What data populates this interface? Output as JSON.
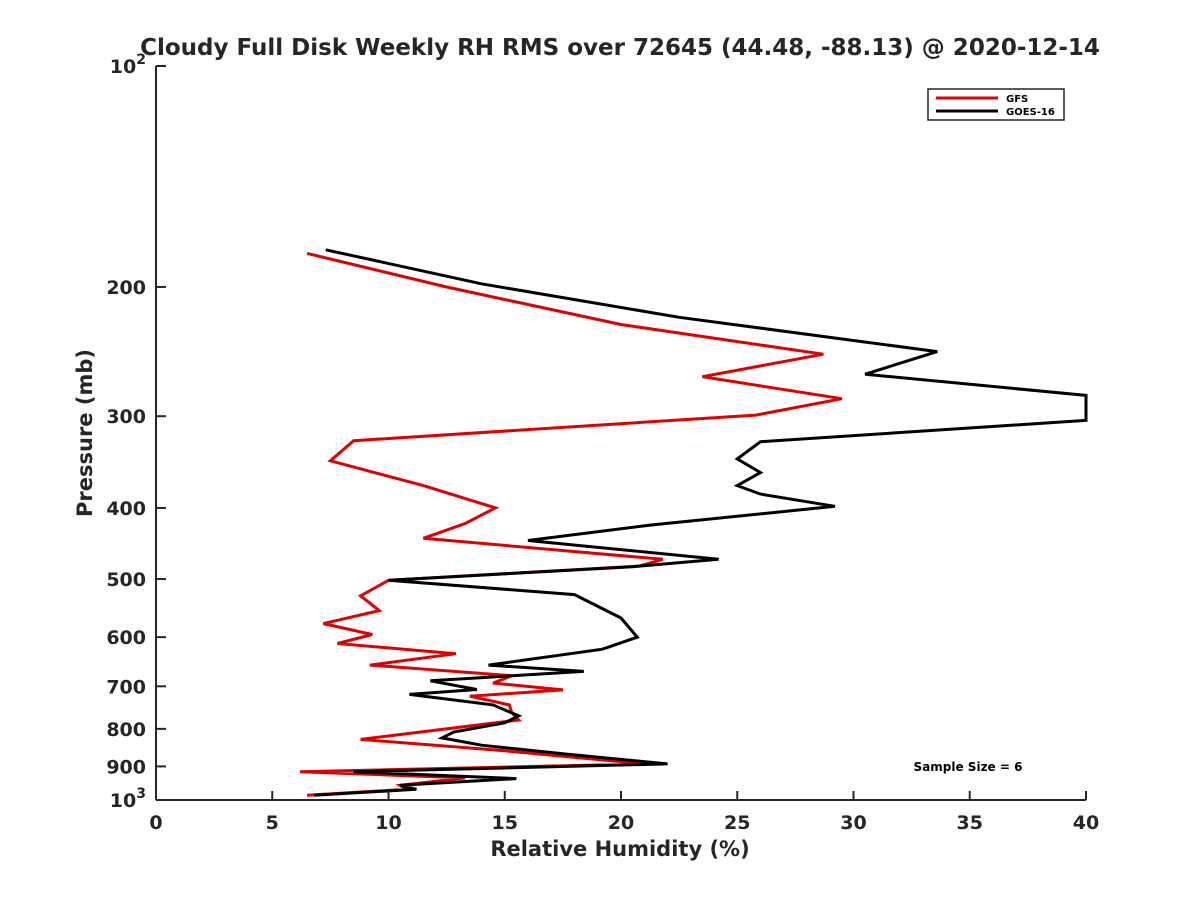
{
  "chart_data": {
    "type": "line",
    "title": "Cloudy Full Disk Weekly RH RMS over 72645 (44.48, -88.13) @ 2020-12-14",
    "xlabel": "Relative Humidity (%)",
    "ylabel": "Pressure (mb)",
    "xlim": [
      0,
      40
    ],
    "ylim": [
      1000,
      100
    ],
    "yscale": "log",
    "y_reversed": true,
    "grid": false,
    "legend_position": "top-right",
    "x_ticks": [
      "0",
      "5",
      "10",
      "15",
      "20",
      "25",
      "30",
      "35",
      "40"
    ],
    "y_ticks": [
      {
        "value": 100,
        "base": "10",
        "exp": "2"
      },
      {
        "value": 200,
        "label": "200"
      },
      {
        "value": 300,
        "label": "300"
      },
      {
        "value": 400,
        "label": "400"
      },
      {
        "value": 500,
        "label": "500"
      },
      {
        "value": 600,
        "label": "600"
      },
      {
        "value": 700,
        "label": "700"
      },
      {
        "value": 800,
        "label": "800"
      },
      {
        "value": 900,
        "label": "900"
      },
      {
        "value": 1000,
        "base": "10",
        "exp": "3"
      }
    ],
    "annotation": "Sample Size = 6",
    "series": [
      {
        "name": "GFS",
        "color": "#e00000",
        "points": [
          [
            6.5,
            180
          ],
          [
            12.5,
            200
          ],
          [
            20.0,
            225
          ],
          [
            28.7,
            247
          ],
          [
            23.5,
            265
          ],
          [
            29.5,
            284
          ],
          [
            25.8,
            299
          ],
          [
            8.5,
            324
          ],
          [
            7.5,
            345
          ],
          [
            11.5,
            373
          ],
          [
            14.6,
            400
          ],
          [
            13.3,
            420
          ],
          [
            11.5,
            440
          ],
          [
            21.8,
            470
          ],
          [
            20.8,
            480
          ],
          [
            10.0,
            502
          ],
          [
            8.8,
            527
          ],
          [
            9.6,
            552
          ],
          [
            7.2,
            575
          ],
          [
            9.3,
            595
          ],
          [
            7.8,
            612
          ],
          [
            12.9,
            632
          ],
          [
            9.2,
            655
          ],
          [
            15.3,
            677
          ],
          [
            14.5,
            693
          ],
          [
            17.5,
            708
          ],
          [
            13.5,
            722
          ],
          [
            15.2,
            742
          ],
          [
            15.3,
            760
          ],
          [
            15.6,
            778
          ],
          [
            8.8,
            827
          ],
          [
            15.0,
            857
          ],
          [
            21.0,
            893
          ],
          [
            6.2,
            915
          ],
          [
            13.3,
            933
          ],
          [
            10.5,
            955
          ],
          [
            10.8,
            967
          ],
          [
            6.5,
            985
          ]
        ]
      },
      {
        "name": "GOES-16",
        "color": "#000000",
        "points": [
          [
            7.3,
            178
          ],
          [
            14.0,
            198
          ],
          [
            22.5,
            220
          ],
          [
            33.6,
            245
          ],
          [
            30.5,
            263
          ],
          [
            40.0,
            281
          ],
          [
            40.0,
            304
          ],
          [
            26.0,
            325
          ],
          [
            25.0,
            343
          ],
          [
            26.0,
            358
          ],
          [
            25.0,
            373
          ],
          [
            26.0,
            383
          ],
          [
            29.2,
            398
          ],
          [
            21.3,
            422
          ],
          [
            16.0,
            443
          ],
          [
            24.2,
            470
          ],
          [
            20.5,
            481
          ],
          [
            10.0,
            502
          ],
          [
            18.0,
            525
          ],
          [
            20.0,
            565
          ],
          [
            20.7,
            600
          ],
          [
            19.2,
            623
          ],
          [
            14.3,
            655
          ],
          [
            18.4,
            668
          ],
          [
            11.8,
            688
          ],
          [
            13.8,
            707
          ],
          [
            10.9,
            718
          ],
          [
            14.5,
            742
          ],
          [
            15.6,
            768
          ],
          [
            15.0,
            785
          ],
          [
            12.8,
            808
          ],
          [
            12.3,
            823
          ],
          [
            14.0,
            842
          ],
          [
            17.5,
            865
          ],
          [
            22.0,
            893
          ],
          [
            8.5,
            915
          ],
          [
            15.5,
            935
          ],
          [
            10.5,
            955
          ],
          [
            11.2,
            967
          ],
          [
            6.8,
            985
          ]
        ]
      }
    ]
  }
}
